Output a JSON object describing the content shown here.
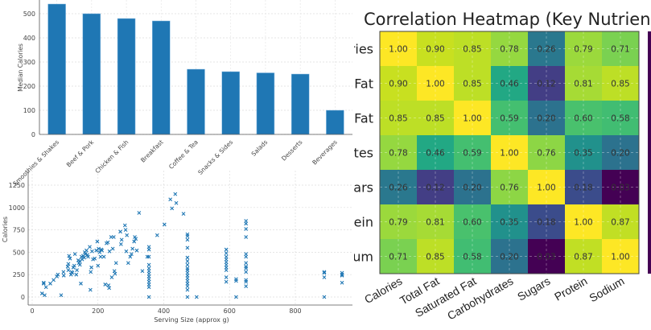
{
  "chart_data": [
    {
      "type": "bar",
      "ylabel": "Median Calories",
      "categories": [
        "Smoothies & Shakes",
        "Beef & Pork",
        "Chicken & Fish",
        "Breakfast",
        "Coffee & Tea",
        "Snacks & Sides",
        "Salads",
        "Desserts",
        "Beverages"
      ],
      "values": [
        540,
        500,
        480,
        470,
        270,
        260,
        255,
        250,
        100
      ],
      "ylim": [
        0,
        550
      ],
      "yticks": [
        0,
        100,
        200,
        300,
        400,
        500
      ],
      "grid": true,
      "color": "#1f77b4"
    },
    {
      "type": "scatter",
      "xlabel": "Serving Size (approx g)",
      "ylabel": "Calories",
      "marker": "x",
      "color": "#1f77b4",
      "xlim": [
        -25,
        970
      ],
      "ylim": [
        -90,
        1380
      ],
      "xticks": [
        0,
        200,
        400,
        600,
        800
      ],
      "yticks": [
        0,
        250,
        500,
        750,
        1000,
        1250
      ],
      "grid": true,
      "points": [
        [
          30,
          40
        ],
        [
          35,
          160
        ],
        [
          35,
          150
        ],
        [
          38,
          20
        ],
        [
          42,
          110
        ],
        [
          55,
          150
        ],
        [
          65,
          190
        ],
        [
          75,
          230
        ],
        [
          78,
          250
        ],
        [
          88,
          20
        ],
        [
          95,
          280
        ],
        [
          96,
          240
        ],
        [
          108,
          340
        ],
        [
          110,
          370
        ],
        [
          110,
          300
        ],
        [
          112,
          460
        ],
        [
          115,
          430
        ],
        [
          118,
          250
        ],
        [
          120,
          280
        ],
        [
          122,
          270
        ],
        [
          125,
          330
        ],
        [
          128,
          350
        ],
        [
          130,
          480
        ],
        [
          134,
          250
        ],
        [
          136,
          300
        ],
        [
          140,
          410
        ],
        [
          142,
          380
        ],
        [
          145,
          360
        ],
        [
          145,
          400
        ],
        [
          148,
          150
        ],
        [
          150,
          450
        ],
        [
          152,
          420
        ],
        [
          155,
          460
        ],
        [
          158,
          440
        ],
        [
          160,
          500
        ],
        [
          162,
          480
        ],
        [
          165,
          520
        ],
        [
          168,
          470
        ],
        [
          170,
          450
        ],
        [
          175,
          560
        ],
        [
          177,
          80
        ],
        [
          178,
          280
        ],
        [
          180,
          330
        ],
        [
          182,
          510
        ],
        [
          185,
          420
        ],
        [
          190,
          430
        ],
        [
          195,
          520
        ],
        [
          198,
          620
        ],
        [
          200,
          350
        ],
        [
          202,
          540
        ],
        [
          205,
          500
        ],
        [
          208,
          450
        ],
        [
          210,
          530
        ],
        [
          212,
          520
        ],
        [
          218,
          450
        ],
        [
          222,
          140
        ],
        [
          226,
          600
        ],
        [
          230,
          610
        ],
        [
          232,
          130
        ],
        [
          234,
          100
        ],
        [
          235,
          510
        ],
        [
          240,
          670
        ],
        [
          242,
          220
        ],
        [
          245,
          540
        ],
        [
          248,
          670
        ],
        [
          250,
          290
        ],
        [
          252,
          260
        ],
        [
          255,
          380
        ],
        [
          268,
          730
        ],
        [
          270,
          590
        ],
        [
          272,
          640
        ],
        [
          282,
          800
        ],
        [
          284,
          750
        ],
        [
          286,
          510
        ],
        [
          288,
          690
        ],
        [
          292,
          380
        ],
        [
          298,
          450
        ],
        [
          302,
          480
        ],
        [
          305,
          540
        ],
        [
          310,
          620
        ],
        [
          312,
          670
        ],
        [
          315,
          650
        ],
        [
          318,
          520
        ],
        [
          325,
          940
        ],
        [
          335,
          290
        ],
        [
          350,
          450
        ],
        [
          355,
          560
        ],
        [
          355,
          530
        ],
        [
          355,
          450
        ],
        [
          355,
          360
        ],
        [
          355,
          320
        ],
        [
          355,
          290
        ],
        [
          355,
          260
        ],
        [
          355,
          230
        ],
        [
          355,
          200
        ],
        [
          355,
          170
        ],
        [
          355,
          140
        ],
        [
          355,
          110
        ],
        [
          355,
          0
        ],
        [
          380,
          690
        ],
        [
          402,
          810
        ],
        [
          420,
          1090
        ],
        [
          425,
          990
        ],
        [
          435,
          1150
        ],
        [
          438,
          1050
        ],
        [
          460,
          930
        ],
        [
          472,
          700
        ],
        [
          472,
          680
        ],
        [
          472,
          640
        ],
        [
          472,
          550
        ],
        [
          472,
          440
        ],
        [
          472,
          400
        ],
        [
          472,
          360
        ],
        [
          472,
          320
        ],
        [
          472,
          300
        ],
        [
          472,
          270
        ],
        [
          472,
          240
        ],
        [
          472,
          210
        ],
        [
          472,
          180
        ],
        [
          472,
          150
        ],
        [
          472,
          120
        ],
        [
          472,
          80
        ],
        [
          472,
          0
        ],
        [
          500,
          0
        ],
        [
          590,
          530
        ],
        [
          590,
          490
        ],
        [
          590,
          450
        ],
        [
          590,
          420
        ],
        [
          590,
          390
        ],
        [
          590,
          360
        ],
        [
          590,
          330
        ],
        [
          590,
          300
        ],
        [
          590,
          220
        ],
        [
          590,
          170
        ],
        [
          620,
          200
        ],
        [
          620,
          180
        ],
        [
          620,
          0
        ],
        [
          650,
          850
        ],
        [
          650,
          820
        ],
        [
          650,
          760
        ],
        [
          650,
          670
        ],
        [
          650,
          480
        ],
        [
          650,
          450
        ],
        [
          650,
          380
        ],
        [
          650,
          340
        ],
        [
          650,
          320
        ],
        [
          650,
          280
        ],
        [
          650,
          190
        ],
        [
          650,
          170
        ],
        [
          650,
          120
        ],
        [
          888,
          280
        ],
        [
          888,
          270
        ],
        [
          888,
          220
        ],
        [
          888,
          0
        ],
        [
          942,
          270
        ],
        [
          942,
          250
        ],
        [
          942,
          240
        ],
        [
          942,
          160
        ]
      ]
    },
    {
      "type": "heatmap",
      "title": "Correlation Heatmap (Key Nutrients)",
      "colormap": "viridis",
      "labels": [
        "Calories",
        "Total Fat",
        "Saturated Fat",
        "Carbohydrates",
        "Sugars",
        "Protein",
        "Sodium"
      ],
      "values": [
        [
          1.0,
          0.9,
          0.85,
          0.78,
          0.26,
          0.79,
          0.71
        ],
        [
          0.9,
          1.0,
          0.85,
          0.46,
          0.12,
          0.81,
          0.85
        ],
        [
          0.85,
          0.85,
          1.0,
          0.59,
          0.2,
          0.6,
          0.58
        ],
        [
          0.78,
          0.46,
          0.59,
          1.0,
          0.76,
          0.35,
          0.2
        ],
        [
          0.26,
          0.12,
          0.2,
          0.76,
          1.0,
          0.18,
          0.03
        ],
        [
          0.79,
          0.81,
          0.6,
          0.35,
          0.18,
          1.0,
          0.87
        ],
        [
          0.71,
          0.85,
          0.58,
          0.2,
          0.03,
          0.87,
          1.0
        ]
      ]
    }
  ]
}
